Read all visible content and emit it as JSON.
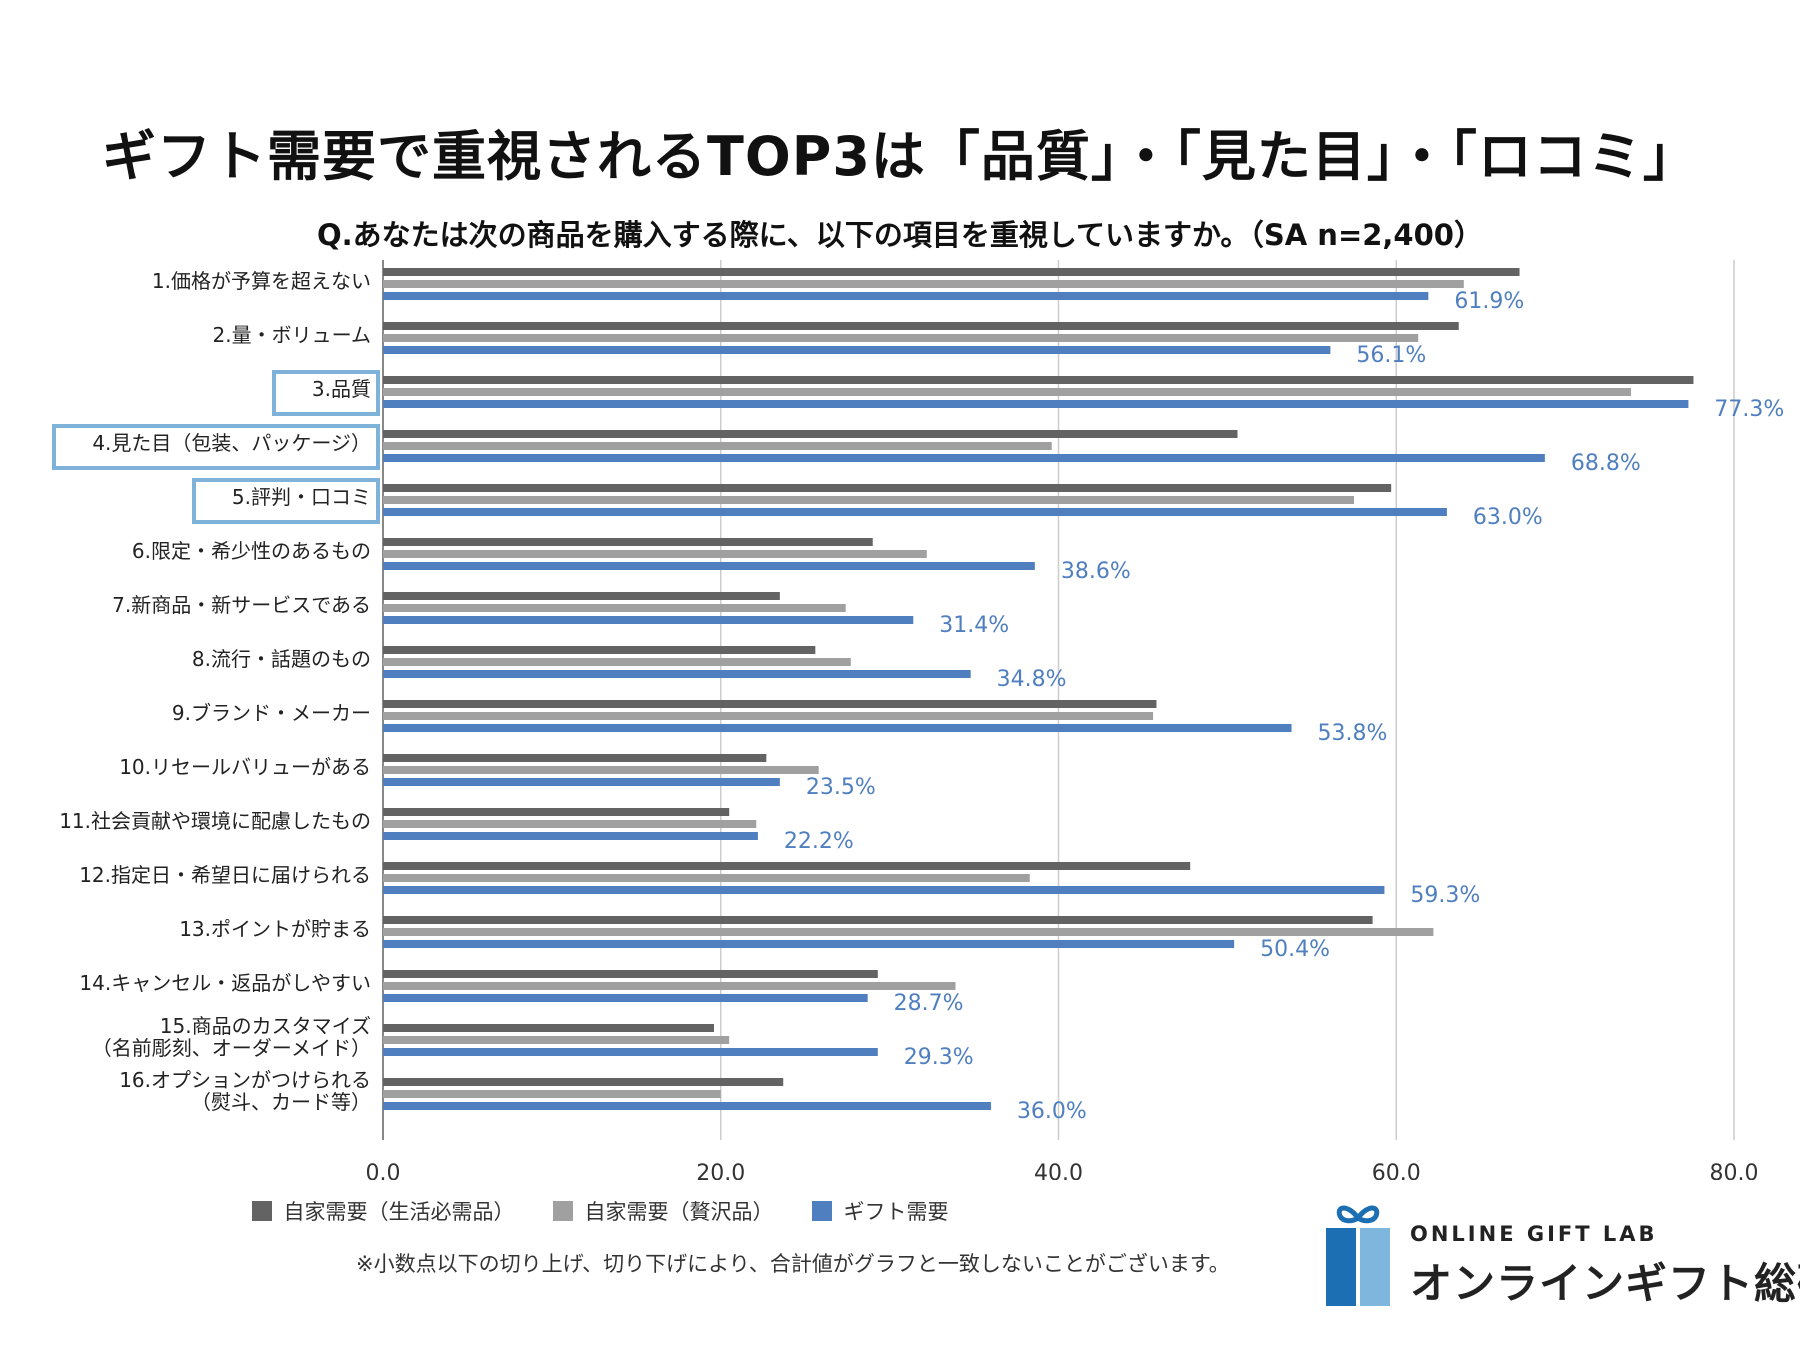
{
  "title": "ギフト需要で重視されるTOP3は「品質」・「見た目」・「ロコミ」",
  "chart_data": {
    "type": "bar",
    "orientation": "horizontal",
    "title": "Q.あなたは次の商品を購入する際に、以下の項目を重視していますか。（SA n=2,400）",
    "categories": [
      [
        "1.価格が予算を超えない"
      ],
      [
        "2.量・ボリューム"
      ],
      [
        "3.品質"
      ],
      [
        "4.見た目（包装、パッケージ）"
      ],
      [
        "5.評判・口コミ"
      ],
      [
        "6.限定・希少性のあるもの"
      ],
      [
        "7.新商品・新サービスである"
      ],
      [
        "8.流行・話題のもの"
      ],
      [
        "9.ブランド・メーカー"
      ],
      [
        "10.リセールバリューがある"
      ],
      [
        "11.社会貢献や環境に配慮したもの"
      ],
      [
        "12.指定日・希望日に届けられる"
      ],
      [
        "13.ポイントが貯まる"
      ],
      [
        "14.キャンセル・返品がしやすい"
      ],
      [
        "15.商品のカスタマイズ",
        "（名前彫刻、オーダーメイド）"
      ],
      [
        "16.オプションがつけられる",
        "（熨斗、カード等）"
      ]
    ],
    "highlighted": [
      "3.品質",
      "4.見た目（包装、パッケージ）",
      "5.評判・口コミ"
    ],
    "series": [
      {
        "name": "自家需要（生活必需品）",
        "color": "#636363",
        "values": [
          67.3,
          63.7,
          77.6,
          50.6,
          59.7,
          29.0,
          23.5,
          25.6,
          45.8,
          22.7,
          20.5,
          47.8,
          58.6,
          29.3,
          19.6,
          23.7
        ]
      },
      {
        "name": "自家需要（贅沢品）",
        "color": "#a0a0a0",
        "values": [
          64.0,
          61.3,
          73.9,
          39.6,
          57.5,
          32.2,
          27.4,
          27.7,
          45.6,
          25.8,
          22.1,
          38.3,
          62.2,
          33.9,
          20.5,
          20.0
        ]
      },
      {
        "name": "ギフト需要",
        "color": "#4f7fbf",
        "values": [
          61.9,
          56.1,
          77.3,
          68.8,
          63.0,
          38.6,
          31.4,
          34.8,
          53.8,
          23.5,
          22.2,
          59.3,
          50.4,
          28.7,
          29.3,
          36.0
        ]
      }
    ],
    "data_labels": [
      "61.9%",
      "56.1%",
      "77.3%",
      "68.8%",
      "63.0%",
      "38.6%",
      "31.4%",
      "34.8%",
      "53.8%",
      "23.5%",
      "22.2%",
      "59.3%",
      "50.4%",
      "28.7%",
      "29.3%",
      "36.0%"
    ],
    "xlim": [
      0,
      80
    ],
    "xticks": [
      0,
      20,
      40,
      60,
      80
    ],
    "xtick_labels": [
      "0.0",
      "20.0",
      "40.0",
      "60.0",
      "80.0"
    ],
    "grid": true,
    "legend_position": "bottom"
  },
  "legend": [
    {
      "label": "自家需要（生活必需品）",
      "color": "#636363"
    },
    {
      "label": "自家需要（贅沢品）",
      "color": "#a0a0a0"
    },
    {
      "label": "ギフト需要",
      "color": "#4f7fbf"
    }
  ],
  "note": "※小数点以下の切り上げ、切り下げにより、合計値がグラフと一致しないことがございます。",
  "logo": {
    "en": "ONLINE GIFT LAB",
    "ja": "オンラインギフト総研",
    "colors": {
      "dark": "#1c6fb3",
      "light": "#7fb6de"
    }
  },
  "colors": {
    "highlight_box": "#7fb2d8",
    "label_text": "#4f7fbf",
    "grid": "#cccccc"
  }
}
